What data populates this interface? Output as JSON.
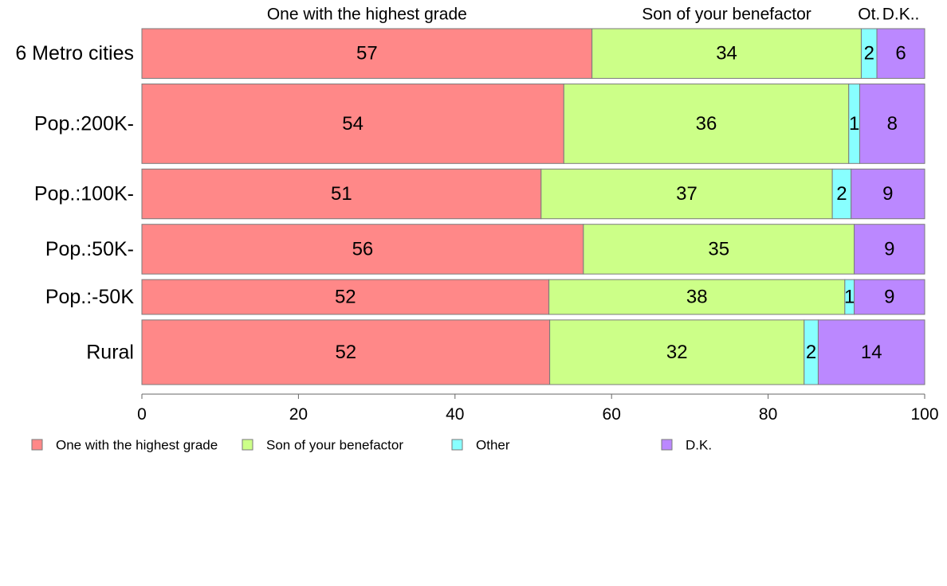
{
  "chart_data": {
    "type": "bar",
    "orientation": "horizontal",
    "stacked": true,
    "categories": [
      "6 Metro cities",
      "Pop.:200K-",
      "Pop.:100K-",
      "Pop.:50K-",
      "Pop.:-50K",
      "Rural"
    ],
    "series": [
      {
        "name": "One with the highest grade",
        "color": "#ff8888",
        "values": [
          57.5,
          53.9,
          51.0,
          56.4,
          52.0,
          52.1
        ]
      },
      {
        "name": "Son of your benefactor",
        "color": "#ccff88",
        "values": [
          34.4,
          36.4,
          37.2,
          34.6,
          37.8,
          32.5
        ]
      },
      {
        "name": "Other",
        "color": "#88ffff",
        "values": [
          2.0,
          1.4,
          2.4,
          0.0,
          1.2,
          1.8
        ]
      },
      {
        "name": "D.K.",
        "color": "#bb88ff",
        "values": [
          6.1,
          8.3,
          9.4,
          9.0,
          9.0,
          13.6
        ]
      }
    ],
    "data_labels": [
      [
        "57",
        "34",
        "2",
        "6"
      ],
      [
        "54",
        "36",
        "1",
        "8"
      ],
      [
        "51",
        "37",
        "2",
        "9"
      ],
      [
        "56",
        "35",
        "",
        "9"
      ],
      [
        "52",
        "38",
        "1",
        "9"
      ],
      [
        "52",
        "32",
        "2",
        "14"
      ]
    ],
    "top_labels": [
      "One with the highest grade",
      "Son of your benefactor",
      "Ot.",
      "D.K.."
    ],
    "xlim": [
      0,
      100
    ],
    "xticks": [
      "0",
      "20",
      "40",
      "60",
      "80",
      "100"
    ],
    "bar_weights": [
      1.0,
      1.6,
      1.0,
      1.0,
      0.7,
      1.3
    ],
    "legend": {
      "position": "bottom-left",
      "items": [
        "One with the highest grade",
        "Son of your benefactor",
        "Other",
        "D.K."
      ]
    },
    "grid": false,
    "title": "",
    "xlabel": "",
    "ylabel": ""
  }
}
